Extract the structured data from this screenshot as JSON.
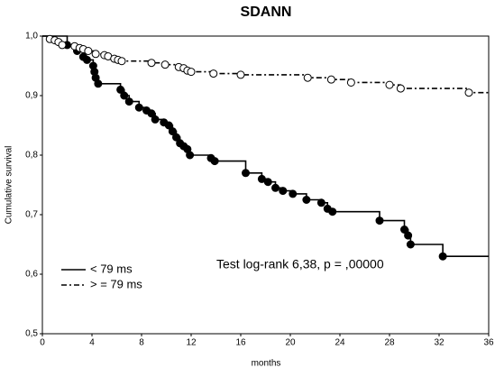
{
  "chart_data": {
    "type": "survival",
    "title": "SDANN",
    "x_label": "months",
    "y_label": "Cumulative survival",
    "annotation": "Test log-rank 6,38, p = ,00000",
    "xlim": [
      0,
      36
    ],
    "xticks": [
      0,
      4,
      8,
      12,
      16,
      20,
      24,
      28,
      32,
      36
    ],
    "ylim": [
      0.5,
      1.0
    ],
    "yticks": [
      {
        "value": 0.5,
        "label": "0,5"
      },
      {
        "value": 0.6,
        "label": "0,6"
      },
      {
        "value": 0.7,
        "label": "0,7"
      },
      {
        "value": 0.8,
        "label": "0,8"
      },
      {
        "value": 0.9,
        "label": "0,9"
      },
      {
        "value": 1.0,
        "label": "1,0"
      }
    ],
    "series": [
      {
        "name": "< 79 ms",
        "color": "#000000",
        "dash": false,
        "marker": "filled",
        "x": [
          2.0,
          2.8,
          3.3,
          3.6,
          4.1,
          4.2,
          4.3,
          4.5,
          6.3,
          6.6,
          7.0,
          7.8,
          8.4,
          8.8,
          9.1,
          9.8,
          10.2,
          10.5,
          10.8,
          11.1,
          11.4,
          11.7,
          11.9,
          13.6,
          13.9,
          16.4,
          17.7,
          18.2,
          18.8,
          19.4,
          20.2,
          21.3,
          22.5,
          23.0,
          23.4,
          27.2,
          29.2,
          29.5,
          29.7,
          32.3
        ],
        "values": [
          0.985,
          0.975,
          0.965,
          0.96,
          0.95,
          0.94,
          0.93,
          0.92,
          0.91,
          0.9,
          0.89,
          0.88,
          0.875,
          0.87,
          0.86,
          0.855,
          0.85,
          0.84,
          0.83,
          0.82,
          0.815,
          0.81,
          0.8,
          0.795,
          0.79,
          0.77,
          0.76,
          0.755,
          0.745,
          0.74,
          0.735,
          0.725,
          0.72,
          0.71,
          0.705,
          0.69,
          0.675,
          0.665,
          0.65,
          0.63
        ]
      },
      {
        "name": "> = 79 ms",
        "color": "#000000",
        "dash": true,
        "marker": "open",
        "x": [
          0.6,
          1.0,
          1.3,
          1.6,
          2.6,
          3.0,
          3.3,
          3.7,
          4.3,
          5.0,
          5.3,
          5.8,
          6.1,
          6.4,
          8.8,
          9.9,
          11.0,
          11.4,
          11.7,
          12.0,
          13.8,
          16.0,
          21.4,
          23.3,
          24.9,
          28.0,
          28.9,
          34.4
        ],
        "values": [
          0.995,
          0.993,
          0.99,
          0.985,
          0.983,
          0.98,
          0.978,
          0.975,
          0.97,
          0.968,
          0.966,
          0.962,
          0.96,
          0.958,
          0.955,
          0.952,
          0.948,
          0.946,
          0.942,
          0.94,
          0.937,
          0.935,
          0.93,
          0.927,
          0.922,
          0.918,
          0.912,
          0.905
        ]
      }
    ]
  }
}
